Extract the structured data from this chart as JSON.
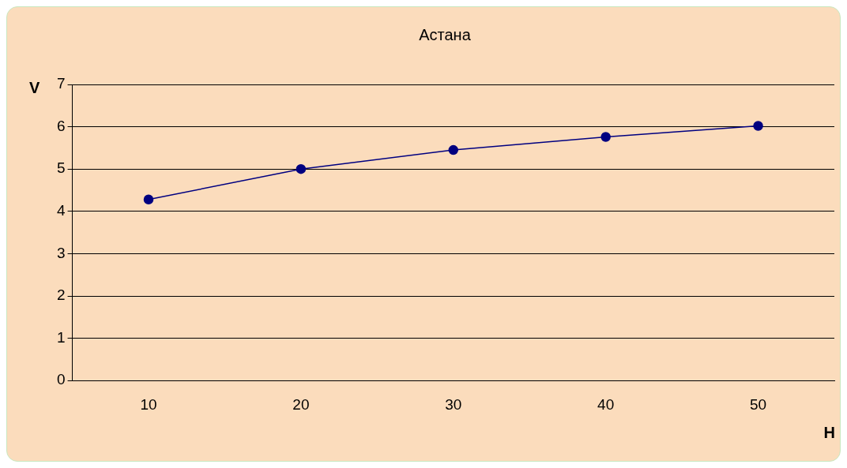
{
  "chart_data": {
    "type": "line",
    "title": "Астана",
    "xlabel": "H",
    "ylabel": "V",
    "categories": [
      "10",
      "20",
      "30",
      "40",
      "50"
    ],
    "series": [
      {
        "color": "#000080",
        "values": [
          4.28,
          5.0,
          5.45,
          5.76,
          6.02
        ]
      }
    ],
    "ylim": [
      0,
      7
    ],
    "yticks": [
      0,
      1,
      2,
      3,
      4,
      5,
      6,
      7
    ],
    "grid": "y",
    "legend": false,
    "marker": "circle",
    "line_style": "solid"
  }
}
